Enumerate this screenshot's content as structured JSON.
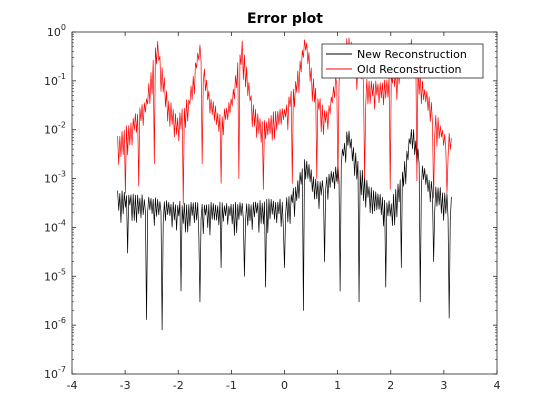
{
  "chart_data": {
    "type": "line",
    "title": "Error plot",
    "xlabel": "",
    "ylabel": "",
    "xlim": [
      -4,
      4
    ],
    "ylim": [
      1e-07,
      1
    ],
    "yscale": "log",
    "grid": false,
    "legend_position": "top-right",
    "x_ticks": [
      {
        "value": -4,
        "label": "-4"
      },
      {
        "value": -3,
        "label": "-3"
      },
      {
        "value": -2,
        "label": "-2"
      },
      {
        "value": -1,
        "label": "-1"
      },
      {
        "value": 0,
        "label": "0"
      },
      {
        "value": 1,
        "label": "1"
      },
      {
        "value": 2,
        "label": "2"
      },
      {
        "value": 3,
        "label": "3"
      },
      {
        "value": 4,
        "label": "4"
      }
    ],
    "y_ticks": [
      {
        "value": 1e-07,
        "base": "10",
        "exp": "-7"
      },
      {
        "value": 1e-06,
        "base": "10",
        "exp": "-6"
      },
      {
        "value": 1e-05,
        "base": "10",
        "exp": "-5"
      },
      {
        "value": 0.0001,
        "base": "10",
        "exp": "-4"
      },
      {
        "value": 0.001,
        "base": "10",
        "exp": "-3"
      },
      {
        "value": 0.01,
        "base": "10",
        "exp": "-2"
      },
      {
        "value": 0.1,
        "base": "10",
        "exp": "-1"
      },
      {
        "value": 1,
        "base": "10",
        "exp": "0"
      }
    ],
    "series": [
      {
        "name": "New Reconstruction",
        "color": "#000000",
        "x_range": [
          -3.1416,
          3.1416
        ],
        "n_points": 301,
        "envelope": {
          "x": [
            -3.14,
            -2.8,
            -2.4,
            -2.0,
            -1.6,
            -1.2,
            -0.8,
            -0.4,
            0.0,
            0.2,
            0.4,
            0.6,
            0.8,
            1.0,
            1.2,
            1.4,
            1.6,
            1.8,
            2.0,
            2.2,
            2.4,
            2.6,
            2.8,
            3.0,
            3.14
          ],
          "y": [
            0.0006,
            0.0005,
            0.0004,
            0.00035,
            0.00033,
            0.00033,
            0.00034,
            0.00038,
            0.0004,
            0.0007,
            0.003,
            0.0009,
            0.0012,
            0.002,
            0.012,
            0.002,
            0.0008,
            0.0005,
            0.00035,
            0.0012,
            0.014,
            0.002,
            0.0008,
            0.0006,
            0.0005
          ]
        },
        "dips": [
          {
            "x": -2.95,
            "y": 3e-05
          },
          {
            "x": -2.6,
            "y": 1.3e-06
          },
          {
            "x": -2.3,
            "y": 8e-07
          },
          {
            "x": -1.95,
            "y": 5e-06
          },
          {
            "x": -1.6,
            "y": 3e-06
          },
          {
            "x": -1.2,
            "y": 1.5e-05
          },
          {
            "x": -0.75,
            "y": 1e-05
          },
          {
            "x": -0.35,
            "y": 6e-06
          },
          {
            "x": 0.0,
            "y": 1.5e-05
          },
          {
            "x": 0.35,
            "y": 2e-06
          },
          {
            "x": 0.75,
            "y": 2e-05
          },
          {
            "x": 1.05,
            "y": 5e-06
          },
          {
            "x": 1.4,
            "y": 3e-06
          },
          {
            "x": 1.9,
            "y": 6e-06
          },
          {
            "x": 2.2,
            "y": 1.5e-05
          },
          {
            "x": 2.55,
            "y": 3e-06
          },
          {
            "x": 2.8,
            "y": 2e-05
          },
          {
            "x": 3.1,
            "y": 1.4e-06
          }
        ]
      },
      {
        "name": "Old Reconstruction",
        "color": "#ff0000",
        "x_range": [
          -3.1416,
          3.1416
        ],
        "n_points": 301,
        "envelope": {
          "x": [
            -3.14,
            -2.9,
            -2.6,
            -2.4,
            -2.2,
            -2.0,
            -1.8,
            -1.6,
            -1.4,
            -1.2,
            -1.0,
            -0.8,
            -0.6,
            -0.4,
            -0.2,
            0.0,
            0.2,
            0.4,
            0.6,
            0.8,
            1.0,
            1.2,
            1.4,
            1.6,
            1.8,
            2.0,
            2.2,
            2.4,
            2.6,
            2.8,
            3.0,
            3.14
          ],
          "y": [
            0.008,
            0.015,
            0.05,
            0.8,
            0.05,
            0.02,
            0.05,
            0.7,
            0.05,
            0.02,
            0.05,
            0.7,
            0.04,
            0.015,
            0.025,
            0.03,
            0.1,
            0.9,
            0.06,
            0.025,
            0.2,
            1.0,
            0.25,
            0.1,
            0.1,
            0.15,
            0.25,
            0.9,
            0.1,
            0.03,
            0.01,
            0.008
          ]
        },
        "dips": [
          {
            "x": -3.0,
            "y": 0.0005
          },
          {
            "x": -2.75,
            "y": 0.0007
          },
          {
            "x": -2.45,
            "y": 0.002
          },
          {
            "x": -1.9,
            "y": 0.0003
          },
          {
            "x": -1.55,
            "y": 0.002
          },
          {
            "x": -1.2,
            "y": 0.0008
          },
          {
            "x": -0.85,
            "y": 0.001
          },
          {
            "x": -0.4,
            "y": 0.0006
          },
          {
            "x": 0.15,
            "y": 0.0008
          },
          {
            "x": 0.6,
            "y": 0.001
          },
          {
            "x": 1.0,
            "y": 0.0008
          },
          {
            "x": 1.5,
            "y": 0.001
          },
          {
            "x": 2.0,
            "y": 0.0006
          },
          {
            "x": 2.5,
            "y": 0.0009
          },
          {
            "x": 2.8,
            "y": 0.0004
          },
          {
            "x": 3.05,
            "y": 0.0005
          }
        ]
      }
    ]
  }
}
